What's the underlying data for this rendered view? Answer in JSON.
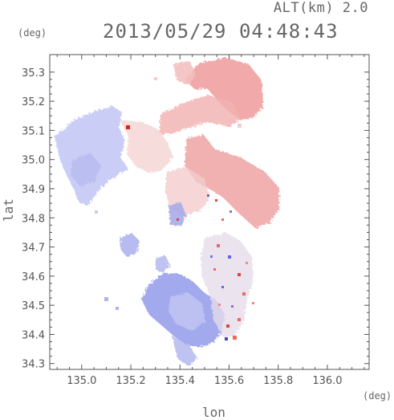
{
  "header": {
    "altitude": "ALT(km) 2.0",
    "datetime": "2013/05/29 04:48:43"
  },
  "axes": {
    "y_unit": "(deg)",
    "x_unit": "(deg)",
    "x_label": "lon",
    "y_label": "lat",
    "x_ticks": [
      "135.0",
      "135.2",
      "135.4",
      "135.6",
      "135.8",
      "136.0"
    ],
    "y_ticks": [
      "35.3",
      "35.2",
      "35.1",
      "35.0",
      "34.9",
      "34.8",
      "34.7",
      "34.6",
      "34.5",
      "34.4",
      "34.3"
    ],
    "x_range": [
      134.87,
      136.17
    ],
    "y_range": [
      34.28,
      35.36
    ]
  },
  "colors": {
    "approaching": "#8c8cf0",
    "receding": "#f08c8c",
    "frame": "#555555",
    "text": "#666666"
  }
}
